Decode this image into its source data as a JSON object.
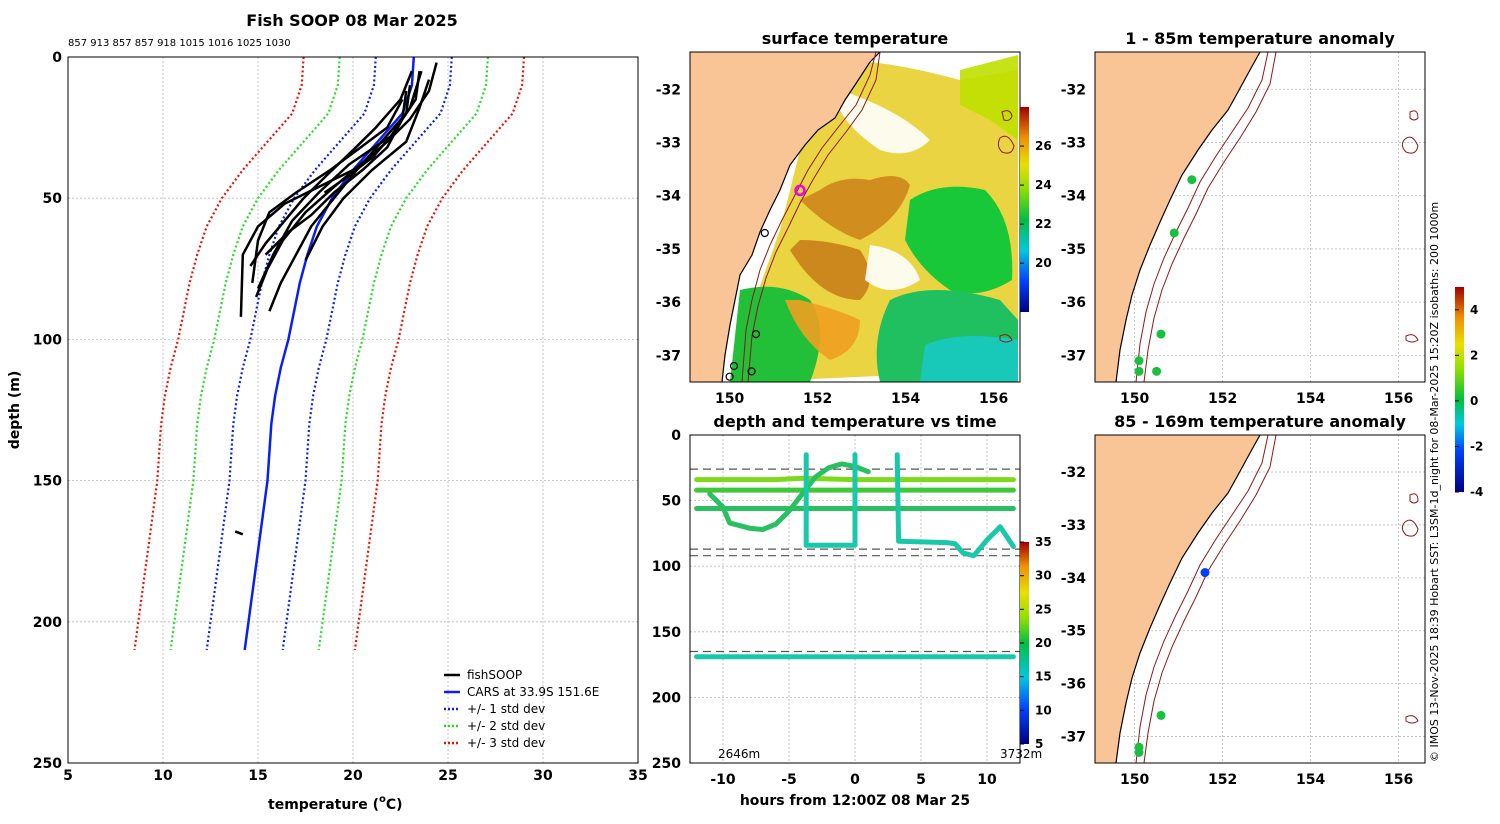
{
  "colors": {
    "land": "#f9c597",
    "fishsoop": "#000000",
    "cars": "#0a1ff2",
    "std1": "#0a1ff2",
    "std2": "#22dd22",
    "std3": "#ee1100",
    "isobath": "#8b1a1a"
  },
  "copyright": "© IMOS 13-Nov-2025 18:39 Hobart SST: L3SM-1d_night for 08-Mar-2025 15:20Z isobaths: 200  1000m",
  "chart_data": [
    {
      "id": "profile",
      "type": "line",
      "title": "Fish SOOP 08 Mar 2025",
      "subtitle": "857 913 857 857 918 1015 1016 1025 1030",
      "xlabel": "temperature (°C)",
      "xlabel_main": "temperature (",
      "xlabel_sup": "o",
      "xlabel_tail": "C)",
      "ylabel": "depth (m)",
      "xlim": [
        5,
        35
      ],
      "ylim": [
        0,
        250
      ],
      "xticks": [
        5,
        10,
        15,
        20,
        25,
        30,
        35
      ],
      "yticks": [
        0,
        50,
        100,
        150,
        200,
        250
      ],
      "legend": {
        "placement": "bottom-right",
        "entries": [
          "fishSOOP",
          "CARS at 33.9S 151.6E",
          "+/- 1 std dev",
          "+/- 2 std dev",
          "+/- 3 std dev"
        ]
      },
      "cars": {
        "depth": [
          0,
          10,
          20,
          30,
          40,
          50,
          60,
          70,
          80,
          90,
          100,
          110,
          120,
          130,
          140,
          150,
          160,
          170,
          180,
          190,
          200,
          210
        ],
        "temp": [
          23.2,
          23.1,
          22.6,
          21.3,
          20.0,
          18.9,
          18.1,
          17.6,
          17.2,
          16.9,
          16.6,
          16.2,
          15.9,
          15.7,
          15.6,
          15.5,
          15.3,
          15.1,
          14.9,
          14.7,
          14.5,
          14.3
        ]
      },
      "std_offsets": {
        "sd1": 2.0,
        "sd2": 3.9,
        "sd3": 5.8
      },
      "fishsoop_profiles": [
        {
          "temp": [
            23.0,
            22.8,
            21.5,
            20.2,
            19.0,
            17.8,
            17.0,
            16.2,
            15.6
          ],
          "depth": [
            10,
            20,
            30,
            40,
            50,
            60,
            70,
            80,
            90
          ]
        },
        {
          "temp": [
            23.5,
            23.3,
            22.0,
            19.8,
            18.2,
            16.8,
            15.8,
            15.0
          ],
          "depth": [
            5,
            15,
            28,
            38,
            48,
            58,
            70,
            82
          ]
        },
        {
          "temp": [
            24.0,
            23.5,
            22.8,
            21.0,
            19.5,
            18.4,
            17.5
          ],
          "depth": [
            8,
            18,
            30,
            40,
            50,
            60,
            72
          ]
        },
        {
          "temp": [
            24.4,
            24.0,
            23.0,
            21.8,
            20.4,
            19.0,
            17.5,
            16.3,
            15.5,
            14.9
          ],
          "depth": [
            2,
            12,
            22,
            30,
            38,
            46,
            55,
            65,
            75,
            85
          ]
        },
        {
          "temp": [
            22.8,
            22.6,
            21.8,
            20.5,
            19.0,
            17.8,
            16.6,
            15.4
          ],
          "depth": [
            12,
            22,
            32,
            40,
            48,
            56,
            62,
            70
          ]
        },
        {
          "temp": [
            23.1,
            22.5,
            21.2,
            20.0,
            18.6,
            17.4,
            16.4,
            15.4,
            14.6
          ],
          "depth": [
            5,
            15,
            25,
            33,
            42,
            50,
            58,
            66,
            74
          ]
        },
        {
          "temp": [
            22.6,
            21.8,
            20.2,
            18.8,
            17.0,
            15.6,
            15.0,
            14.7
          ],
          "depth": [
            15,
            25,
            33,
            40,
            48,
            55,
            65,
            80
          ]
        },
        {
          "temp": [
            23.6,
            23.0,
            22.0,
            21.1,
            19.8,
            18.5
          ],
          "depth": [
            5,
            18,
            28,
            35,
            42,
            48
          ]
        },
        {
          "temp": [
            21.2,
            20.0,
            18.2,
            16.4,
            15.0,
            14.2,
            14.1
          ],
          "depth": [
            35,
            40,
            46,
            52,
            60,
            70,
            92
          ]
        },
        {
          "temp": [
            13.8,
            14.2
          ],
          "depth": [
            168,
            169
          ]
        }
      ]
    },
    {
      "id": "sst_map",
      "type": "heatmap",
      "title": "surface temperature",
      "xlim": [
        149.1,
        156.6
      ],
      "ylim": [
        -37.5,
        -31.3
      ],
      "xticks": [
        150,
        152,
        154,
        156
      ],
      "yticks": [
        -32,
        -33,
        -34,
        -35,
        -36,
        -37
      ],
      "colorbar": {
        "min": 17.5,
        "max": 28.0,
        "ticks": [
          20,
          22,
          24,
          26
        ]
      },
      "fish_locations": [
        {
          "lon": 151.6,
          "lat": -33.9
        },
        {
          "lon": 150.8,
          "lat": -34.7
        },
        {
          "lon": 150.6,
          "lat": -36.6
        },
        {
          "lon": 150.1,
          "lat": -37.2
        },
        {
          "lon": 150.5,
          "lat": -37.3
        },
        {
          "lon": 150.0,
          "lat": -37.4
        }
      ]
    },
    {
      "id": "anom_top",
      "type": "scatter",
      "title": "1 - 85m temperature anomaly",
      "xlim": [
        149.1,
        156.6
      ],
      "ylim": [
        -37.5,
        -31.3
      ],
      "xticks": [
        150,
        152,
        154,
        156
      ],
      "yticks": [
        -32,
        -33,
        -34,
        -35,
        -36,
        -37
      ],
      "points": [
        {
          "lon": 151.3,
          "lat": -33.7,
          "anomaly": 0.2
        },
        {
          "lon": 150.9,
          "lat": -34.7,
          "anomaly": 0.3
        },
        {
          "lon": 150.6,
          "lat": -36.6,
          "anomaly": 0.2
        },
        {
          "lon": 150.1,
          "lat": -37.1,
          "anomaly": 0.3
        },
        {
          "lon": 150.1,
          "lat": -37.3,
          "anomaly": 0.2
        },
        {
          "lon": 150.5,
          "lat": -37.3,
          "anomaly": 0.3
        }
      ]
    },
    {
      "id": "anom_bottom",
      "type": "scatter",
      "title": "85 - 169m temperature anomaly",
      "xlim": [
        149.1,
        156.6
      ],
      "ylim": [
        -37.5,
        -31.3
      ],
      "xticks": [
        150,
        152,
        154,
        156
      ],
      "yticks": [
        -32,
        -33,
        -34,
        -35,
        -36,
        -37
      ],
      "points": [
        {
          "lon": 151.6,
          "lat": -33.9,
          "anomaly": -1.2
        },
        {
          "lon": 150.6,
          "lat": -36.6,
          "anomaly": 0.2
        },
        {
          "lon": 150.1,
          "lat": -37.2,
          "anomaly": 0.3
        },
        {
          "lon": 150.1,
          "lat": -37.3,
          "anomaly": 0.2
        }
      ],
      "colorbar": {
        "min": -4,
        "max": 5,
        "ticks": [
          -4,
          -2,
          0,
          2,
          4
        ]
      }
    },
    {
      "id": "depth_time",
      "type": "line",
      "title": "depth and temperature vs time",
      "xlabel": "hours from 12:00Z 08 Mar 25",
      "xlim": [
        -12.5,
        12.5
      ],
      "ylim": [
        0,
        250
      ],
      "xticks": [
        -10,
        -5,
        0,
        5,
        10
      ],
      "yticks": [
        0,
        50,
        100,
        150,
        200,
        250
      ],
      "left_annotation": "2646m",
      "right_annotation": "3732m",
      "dashed_depths": [
        26,
        87,
        92,
        165
      ],
      "colorbar": {
        "min": 5,
        "max": 35,
        "ticks": [
          5,
          10,
          15,
          20,
          25,
          30,
          35
        ]
      },
      "traces": [
        {
          "temp": 21,
          "hours": [
            -12,
            -10,
            -6,
            -4,
            0,
            4,
            8,
            12
          ],
          "depth": [
            34,
            34,
            34,
            33,
            34,
            34,
            34,
            34
          ]
        },
        {
          "temp": 20,
          "hours": [
            -12,
            -10,
            -6,
            -4,
            0,
            4,
            8,
            12
          ],
          "depth": [
            42,
            42,
            42,
            42,
            42,
            42,
            42,
            42
          ]
        },
        {
          "temp": 19,
          "hours": [
            -12,
            -10,
            -6,
            -4,
            0,
            4,
            8,
            12
          ],
          "depth": [
            56,
            56,
            56,
            56,
            56,
            56,
            56,
            56
          ]
        },
        {
          "temp": 19,
          "hours": [
            -11,
            -10,
            -9.5,
            -8,
            -7,
            -6,
            -5,
            -4,
            -3,
            -2,
            -1,
            0,
            1
          ],
          "depth": [
            45,
            55,
            67,
            71,
            72,
            68,
            58,
            45,
            32,
            25,
            22,
            24,
            28
          ]
        },
        {
          "temp": 17,
          "hours": [
            -3.7,
            -3.7,
            0,
            0
          ],
          "depth": [
            15,
            84,
            84,
            15
          ]
        },
        {
          "temp": 17,
          "hours": [
            3.2,
            3.3,
            7,
            7.6,
            8.2,
            9,
            10,
            11,
            12
          ],
          "depth": [
            15,
            81,
            82,
            83,
            90,
            92,
            80,
            70,
            85
          ]
        },
        {
          "temp": 17,
          "hours": [
            -12,
            -6,
            0,
            6,
            12
          ],
          "depth": [
            169,
            169,
            169,
            169,
            169
          ]
        }
      ]
    }
  ]
}
